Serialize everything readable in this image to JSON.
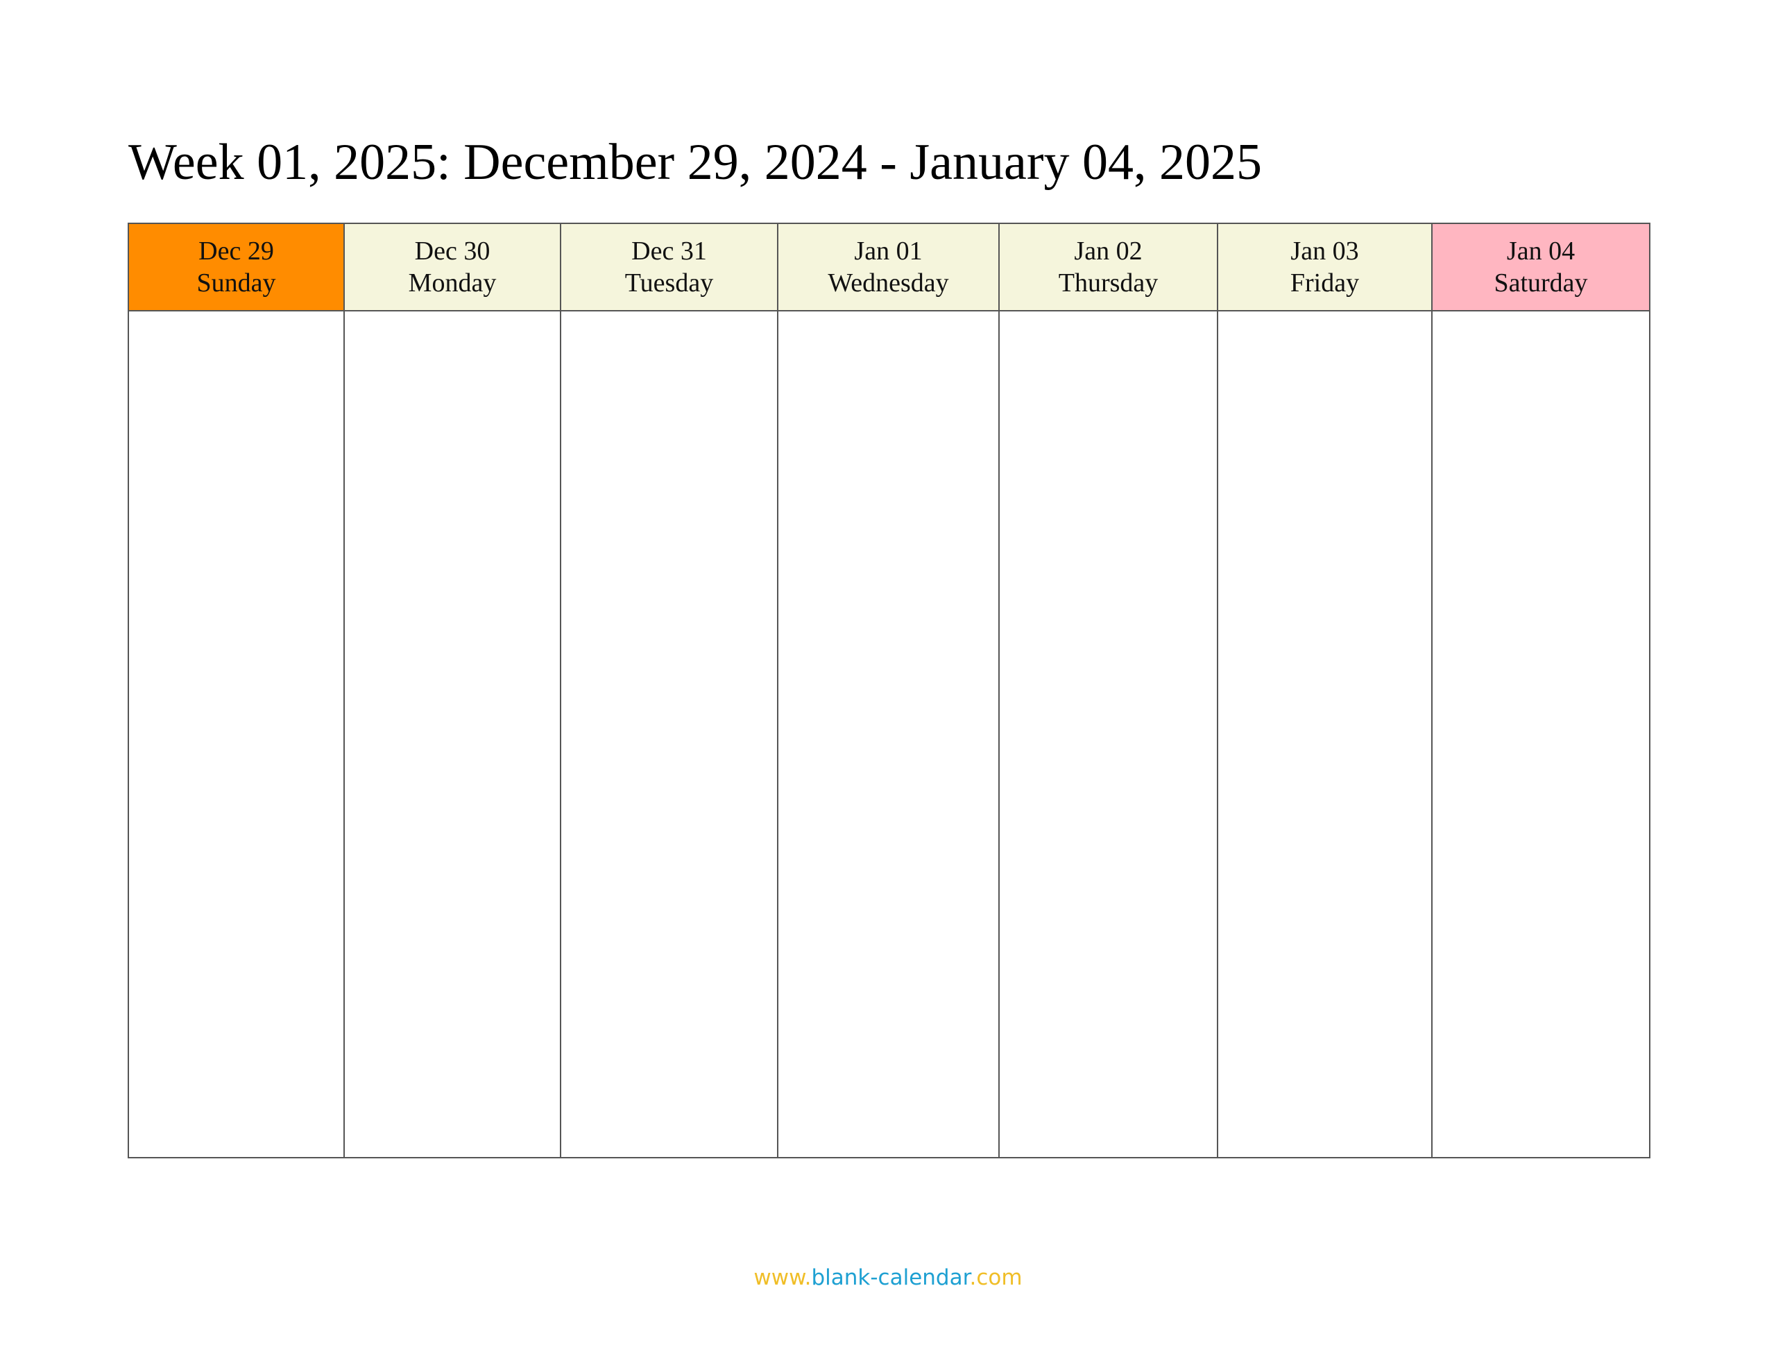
{
  "title": "Week 01, 2025: December 29, 2024 - January 04, 2025",
  "days": [
    {
      "date": "Dec 29",
      "weekday": "Sunday",
      "color": "#FF8C00"
    },
    {
      "date": "Dec 30",
      "weekday": "Monday",
      "color": "#F5F5DC"
    },
    {
      "date": "Dec 31",
      "weekday": "Tuesday",
      "color": "#F5F5DC"
    },
    {
      "date": "Jan 01",
      "weekday": "Wednesday",
      "color": "#F5F5DC"
    },
    {
      "date": "Jan 02",
      "weekday": "Thursday",
      "color": "#F5F5DC"
    },
    {
      "date": "Jan 03",
      "weekday": "Friday",
      "color": "#F5F5DC"
    },
    {
      "date": "Jan 04",
      "weekday": "Saturday",
      "color": "#FFB6C1"
    }
  ],
  "footer": {
    "prefix": "www.",
    "name": "blank-calendar",
    "suffix": ".com",
    "prefix_color": "#F0BE28",
    "name_color": "#1EA0D2"
  }
}
